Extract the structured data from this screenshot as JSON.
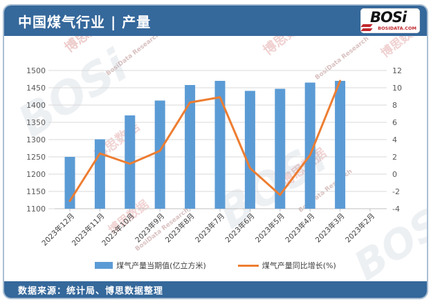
{
  "header": {
    "title": "中国煤气行业 | 产量",
    "logo": {
      "text": "BOSi",
      "domain": "BOSIDATA.COM"
    }
  },
  "footer": {
    "source": "数据来源：统计局、博思数据整理"
  },
  "watermarks": {
    "cn": "博思数据",
    "en": "BosiData Research",
    "logo": "BOSi"
  },
  "colors": {
    "header_blue": "#35689B",
    "bar_blue": "#5B9BD5",
    "line_orange": "#ED7D31",
    "grid_gray": "#D9D9D9",
    "axis_text": "#595959",
    "logo_red": "#C0272D"
  },
  "chart_data": {
    "type": "bar",
    "subtype": "combo-bar-line",
    "categories": [
      "2023年12月",
      "2023年11月",
      "2023年10月",
      "2023年9月",
      "2023年8月",
      "2023年7月",
      "2023年6月",
      "2023年5月",
      "2023年4月",
      "2023年3月",
      "2023年2月"
    ],
    "series": [
      {
        "name": "煤气产量当期值(亿立方米)",
        "type": "bar",
        "axis": "left",
        "color": "#5B9BD5",
        "values": [
          1250,
          1301,
          1370,
          1413,
          1458,
          1470,
          1441,
          1447,
          1465,
          1470,
          null
        ]
      },
      {
        "name": "煤气产量同比增长(%)",
        "type": "line",
        "axis": "right",
        "color": "#ED7D31",
        "values": [
          -3.1,
          2.4,
          1.2,
          2.7,
          8.3,
          8.9,
          0.7,
          -2.4,
          2.2,
          10.8,
          null
        ]
      }
    ],
    "left_axis": {
      "min": 1100,
      "max": 1500,
      "step": 50,
      "ticks": [
        1500,
        1450,
        1400,
        1350,
        1300,
        1250,
        1200,
        1150,
        1100
      ]
    },
    "right_axis": {
      "min": -4,
      "max": 12,
      "step": 2,
      "ticks": [
        12,
        10,
        8,
        6,
        4,
        2,
        0,
        -2,
        -4
      ]
    },
    "grid": true,
    "legend_position": "bottom",
    "title": "中国煤气行业 | 产量",
    "xlabel": "",
    "ylabel_left": "亿立方米",
    "ylabel_right": "%"
  }
}
